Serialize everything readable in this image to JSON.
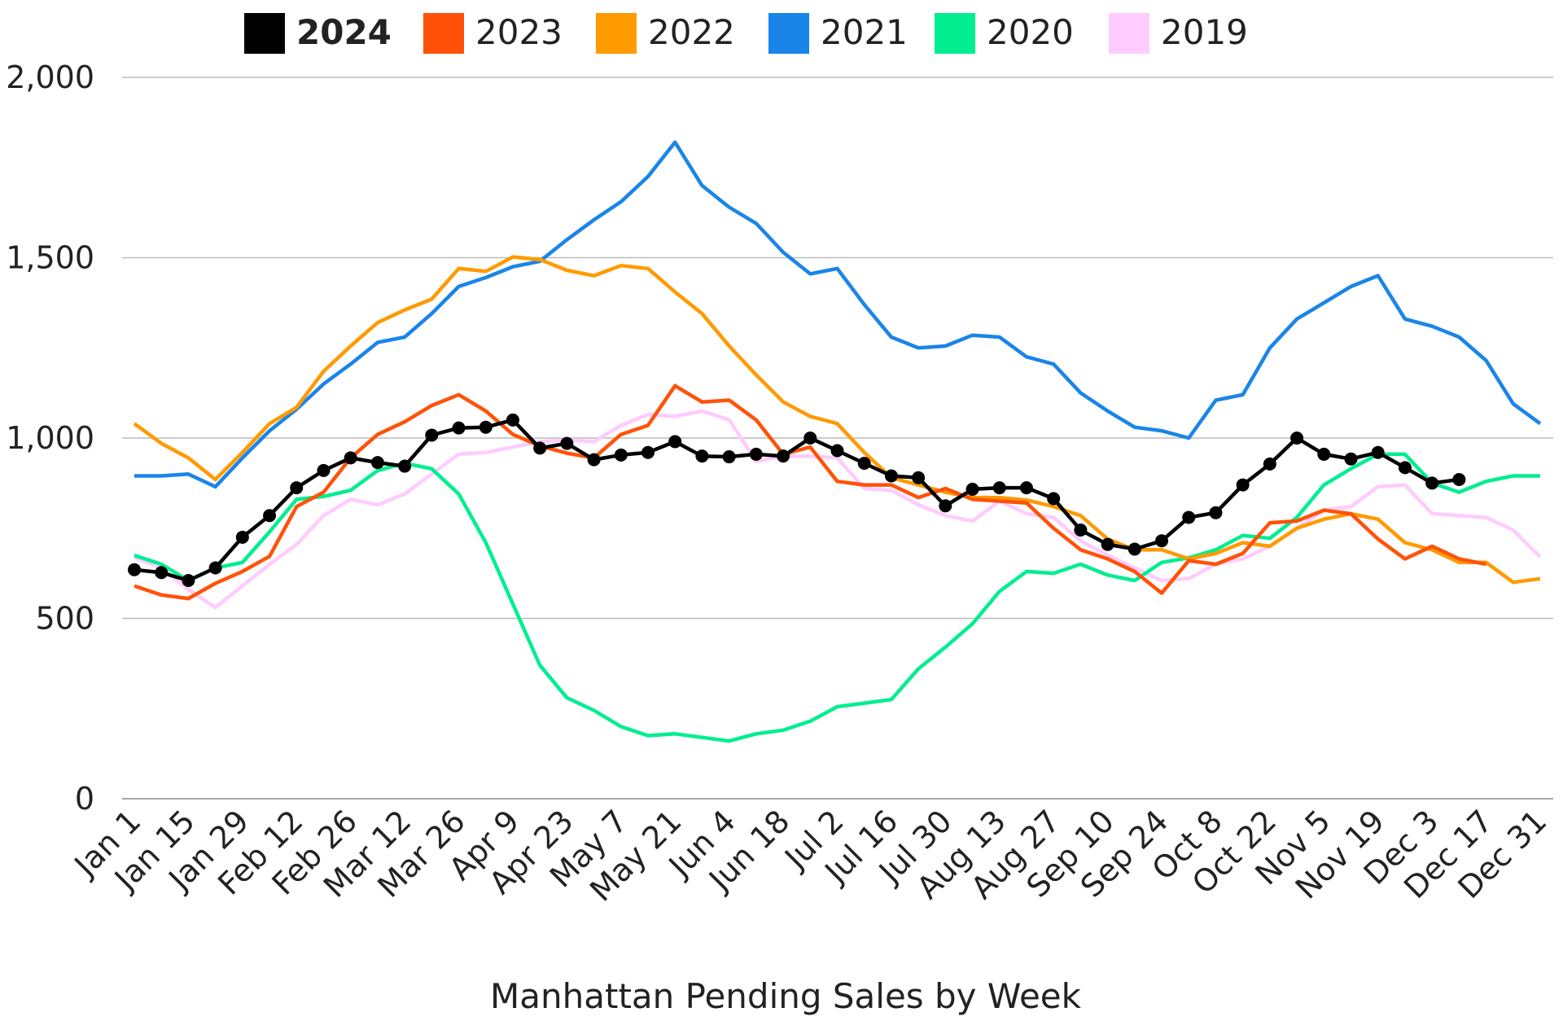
{
  "chart_data": {
    "type": "line",
    "title": "Manhattan Pending Sales by Week",
    "categories": [
      "Jan 1",
      null,
      "Jan 15",
      null,
      "Jan 29",
      null,
      "Feb 12",
      null,
      "Feb 26",
      null,
      "Mar 12",
      null,
      "Mar 26",
      null,
      "Apr 9",
      null,
      "Apr 23",
      null,
      "May 7",
      null,
      "May 21",
      null,
      "Jun 4",
      null,
      "Jun 18",
      null,
      "Jul 2",
      null,
      "Jul 16",
      null,
      "Jul 30",
      null,
      "Aug 13",
      null,
      "Aug 27",
      null,
      "Sep 10",
      null,
      "Sep 24",
      null,
      "Oct 8",
      null,
      "Oct 22",
      null,
      "Nov 5",
      null,
      "Nov 19",
      null,
      "Dec 3",
      null,
      "Dec 17",
      null,
      "Dec 31"
    ],
    "ylim": [
      0,
      2000
    ],
    "yticks": [
      0,
      500,
      {
        "value": 1000,
        "label": "1,000"
      },
      {
        "value": 1500,
        "label": "1,500"
      },
      {
        "value": 2000,
        "label": "2,000"
      }
    ],
    "grid": true,
    "series": [
      {
        "name": "2024",
        "color": "#000000",
        "markers": true,
        "values": [
          635,
          627,
          605,
          640,
          725,
          785,
          862,
          910,
          945,
          932,
          922,
          1008,
          1028,
          1030,
          1050,
          972,
          985,
          940,
          953,
          960,
          990,
          950,
          948,
          955,
          950,
          1000,
          965,
          930,
          895,
          890,
          812,
          858,
          862,
          862,
          832,
          745,
          705,
          692,
          715,
          780,
          793,
          870,
          928,
          1000,
          955,
          942,
          960,
          918,
          875,
          885,
          null,
          null,
          null
        ]
      },
      {
        "name": "2023",
        "color": "#ff5208",
        "values": [
          590,
          565,
          555,
          597,
          630,
          672,
          810,
          850,
          945,
          1010,
          1045,
          1090,
          1120,
          1075,
          1010,
          978,
          958,
          945,
          1010,
          1035,
          1145,
          1100,
          1105,
          1050,
          955,
          975,
          880,
          870,
          870,
          835,
          860,
          830,
          825,
          820,
          750,
          690,
          665,
          630,
          570,
          660,
          650,
          680,
          765,
          770,
          800,
          790,
          720,
          665,
          700,
          665,
          650,
          null,
          null
        ]
      },
      {
        "name": "2022",
        "color": "#ff9a00",
        "values": [
          1040,
          985,
          945,
          885,
          960,
          1040,
          1085,
          1185,
          1255,
          1320,
          1355,
          1385,
          1470,
          1462,
          1502,
          1495,
          1465,
          1450,
          1478,
          1470,
          1405,
          1345,
          1255,
          1175,
          1100,
          1060,
          1040,
          960,
          890,
          870,
          850,
          835,
          835,
          828,
          810,
          785,
          720,
          690,
          690,
          665,
          680,
          710,
          700,
          750,
          775,
          790,
          775,
          710,
          690,
          655,
          655,
          600,
          610
        ]
      },
      {
        "name": "2021",
        "color": "#1a85e8",
        "values": [
          895,
          895,
          900,
          865,
          945,
          1020,
          1080,
          1150,
          1205,
          1265,
          1280,
          1345,
          1420,
          1445,
          1475,
          1490,
          1550,
          1605,
          1655,
          1725,
          1820,
          1700,
          1640,
          1595,
          1515,
          1455,
          1470,
          1370,
          1280,
          1250,
          1255,
          1285,
          1280,
          1225,
          1205,
          1125,
          1075,
          1030,
          1020,
          1000,
          1105,
          1120,
          1250,
          1330,
          1375,
          1420,
          1450,
          1330,
          1310,
          1280,
          1215,
          1095,
          1040
        ]
      },
      {
        "name": "2020",
        "color": "#00ee90",
        "values": [
          675,
          650,
          605,
          640,
          655,
          740,
          830,
          838,
          855,
          910,
          930,
          915,
          845,
          710,
          540,
          370,
          280,
          245,
          200,
          175,
          180,
          170,
          160,
          180,
          190,
          215,
          255,
          265,
          275,
          360,
          420,
          485,
          575,
          630,
          625,
          650,
          620,
          605,
          655,
          668,
          690,
          730,
          722,
          780,
          870,
          915,
          955,
          955,
          875,
          850,
          880,
          895,
          895
        ]
      },
      {
        "name": "2019",
        "color": "#ffccff",
        "values": [
          670,
          640,
          580,
          530,
          590,
          650,
          705,
          785,
          830,
          815,
          845,
          900,
          955,
          960,
          975,
          990,
          995,
          990,
          1035,
          1065,
          1060,
          1075,
          1050,
          935,
          950,
          950,
          945,
          860,
          855,
          815,
          785,
          770,
          825,
          790,
          780,
          715,
          675,
          640,
          605,
          610,
          650,
          665,
          700,
          750,
          800,
          810,
          865,
          870,
          790,
          785,
          780,
          745,
          670
        ]
      }
    ]
  }
}
